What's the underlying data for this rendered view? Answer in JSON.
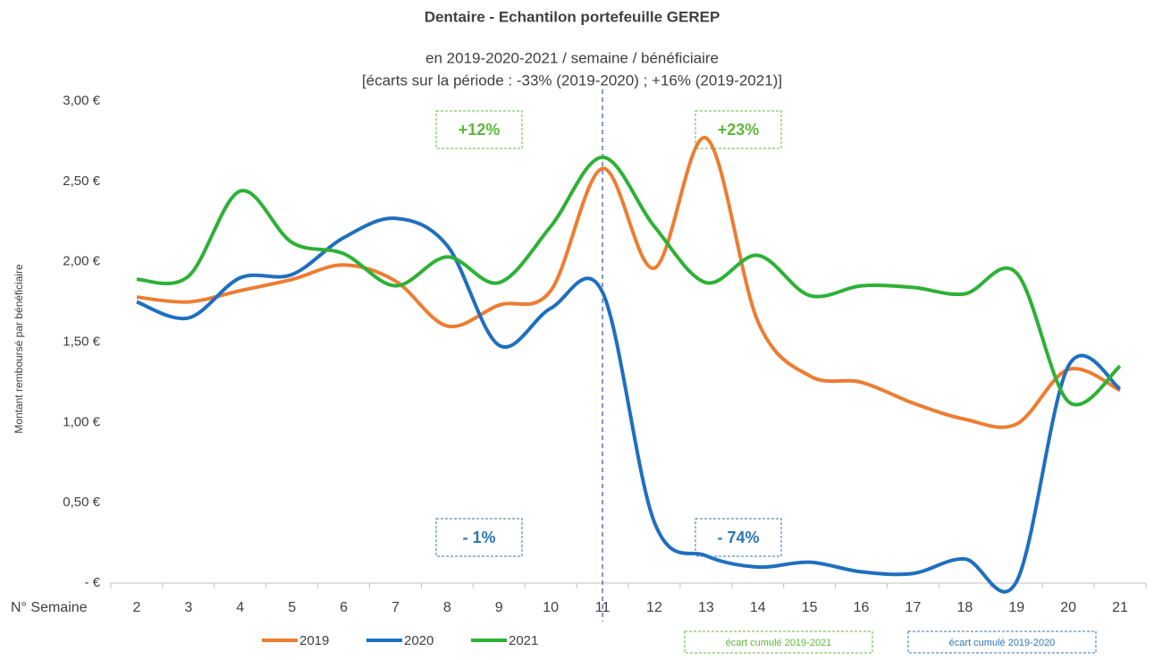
{
  "chart_data": {
    "type": "line",
    "title": "Dentaire - Echantilon portefeuille GEREP",
    "subtitle": "en 2019-2020-2021 / semaine / bénéficiaire",
    "subtitle2": "[écarts sur la période : -33% (2019-2020) ; +16% (2019-2021)]",
    "y_label": "Montant remboursé par bénéficiaire",
    "x_label": "N° Semaine",
    "categories": [
      "2",
      "3",
      "4",
      "5",
      "6",
      "7",
      "8",
      "9",
      "10",
      "11",
      "12",
      "13",
      "14",
      "15",
      "16",
      "17",
      "18",
      "19",
      "20",
      "21"
    ],
    "series": [
      {
        "name": "2019",
        "color": "#ed7d31",
        "values": [
          1.78,
          1.75,
          1.82,
          1.89,
          1.98,
          1.88,
          1.6,
          1.73,
          1.82,
          2.58,
          1.96,
          2.77,
          1.63,
          1.29,
          1.25,
          1.12,
          1.02,
          0.99,
          1.33,
          1.2
        ]
      },
      {
        "name": "2020",
        "color": "#1f6fc0",
        "values": [
          1.75,
          1.65,
          1.9,
          1.92,
          2.15,
          2.27,
          2.1,
          1.48,
          1.71,
          1.81,
          0.38,
          0.17,
          0.1,
          0.13,
          0.07,
          0.06,
          0.15,
          0.01,
          1.35,
          1.21
        ]
      },
      {
        "name": "2021",
        "color": "#2db136",
        "values": [
          1.89,
          1.91,
          2.44,
          2.12,
          2.05,
          1.85,
          2.03,
          1.87,
          2.22,
          2.65,
          2.22,
          1.87,
          2.04,
          1.79,
          1.85,
          1.84,
          1.8,
          1.93,
          1.13,
          1.35
        ]
      }
    ],
    "ylim": [
      0,
      3
    ],
    "yticks": [
      {
        "value": 0,
        "label": "- €"
      },
      {
        "value": 0.5,
        "label": "0,50 €"
      },
      {
        "value": 1,
        "label": "1,00 €"
      },
      {
        "value": 1.5,
        "label": "1,50 €"
      },
      {
        "value": 2,
        "label": "2,00 €"
      },
      {
        "value": 2.5,
        "label": "2,50 €"
      },
      {
        "value": 3,
        "label": "3,00 €"
      }
    ],
    "grid": false,
    "vline_category": "11",
    "annotations": [
      {
        "text": "+12%",
        "color": "#5db83a"
      },
      {
        "text": "+23%",
        "color": "#5db83a"
      },
      {
        "text": "- 1%",
        "color": "#2e75b6"
      },
      {
        "text": "- 74%",
        "color": "#2e75b6"
      },
      {
        "text": "écart cumulé 2019-2021",
        "color": "#5db83a"
      },
      {
        "text": "écart cumulé 2019-2020",
        "color": "#2e75b6"
      }
    ]
  }
}
